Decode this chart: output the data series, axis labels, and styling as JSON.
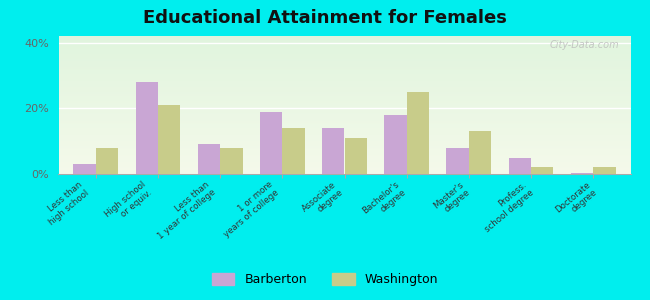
{
  "title": "Educational Attainment for Females",
  "categories": [
    "Less than\nhigh school",
    "High school\nor equiv.",
    "Less than\n1 year of college",
    "1 or more\nyears of college",
    "Associate\ndegree",
    "Bachelor's\ndegree",
    "Master's\ndegree",
    "Profess.\nschool degree",
    "Doctorate\ndegree"
  ],
  "barberton": [
    3.0,
    28.0,
    9.0,
    19.0,
    14.0,
    18.0,
    8.0,
    5.0,
    0.3
  ],
  "washington": [
    8.0,
    21.0,
    8.0,
    14.0,
    11.0,
    25.0,
    13.0,
    2.0,
    2.0
  ],
  "barberton_color": "#c9a6d4",
  "washington_color": "#c8cc8a",
  "plot_bg_top": "#dff0d8",
  "plot_bg_bottom": "#f5f9e8",
  "outer_background": "#00eeee",
  "title_fontsize": 13,
  "ylim": [
    0,
    42
  ],
  "yticks": [
    0,
    20,
    40
  ],
  "ytick_labels": [
    "0%",
    "20%",
    "40%"
  ],
  "legend_barberton": "Barberton",
  "legend_washington": "Washington",
  "watermark": "City-Data.com"
}
